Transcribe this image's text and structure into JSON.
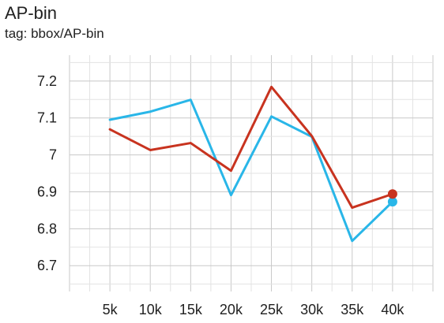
{
  "chart": {
    "title": "AP-bin",
    "subtitle": "tag: bbox/AP-bin"
  },
  "chart_data": {
    "type": "line",
    "title": "AP-bin",
    "subtitle": "tag: bbox/AP-bin",
    "xlabel": "",
    "ylabel": "",
    "x": [
      5000,
      10000,
      15000,
      20000,
      25000,
      30000,
      35000,
      40000
    ],
    "x_tick_labels": [
      "5k",
      "10k",
      "15k",
      "20k",
      "25k",
      "30k",
      "35k",
      "40k"
    ],
    "y_ticks": [
      6.7,
      6.8,
      6.9,
      7.0,
      7.1,
      7.2
    ],
    "y_tick_labels": [
      "6.7",
      "6.8",
      "6.9",
      "7",
      "7.1",
      "7.2"
    ],
    "xlim": [
      0,
      45000
    ],
    "ylim": [
      6.63,
      7.27
    ],
    "grid": true,
    "legend": "none",
    "series": [
      {
        "color": "#29b6e8",
        "values": [
          7.095,
          7.117,
          7.149,
          6.891,
          7.104,
          7.049,
          6.767,
          6.873
        ]
      },
      {
        "color": "#c8331f",
        "values": [
          7.069,
          7.013,
          7.032,
          6.957,
          7.184,
          7.051,
          6.857,
          6.894
        ]
      }
    ]
  }
}
